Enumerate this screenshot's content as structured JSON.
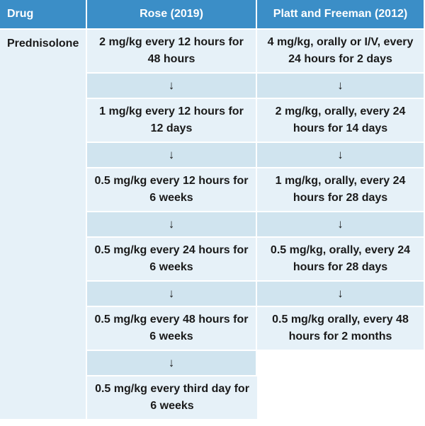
{
  "headers": {
    "drug": "Drug",
    "rose": "Rose (2019)",
    "platt": "Platt and Freeman (2012)"
  },
  "drug_name": "Prednisolone",
  "arrow": "↓",
  "rose": [
    "2 mg/kg every 12 hours for 48 hours",
    "1 mg/kg every 12 hours for 12 days",
    "0.5 mg/kg every 12 hours for 6 weeks",
    "0.5 mg/kg every 24 hours for 6 weeks",
    "0.5 mg/kg every 48 hours for 6 weeks",
    "0.5 mg/kg every third day for 6 weeks"
  ],
  "platt": [
    "4 mg/kg, orally or I/V, every 24 hours for 2 days",
    "2 mg/kg, orally, every 24 hours for 14 days",
    "1 mg/kg, orally, every 24 hours for 28 days",
    "0.5 mg/kg, orally, every 24 hours for 28 days",
    "0.5 mg/kg orally, every 48 hours for 2 months"
  ]
}
